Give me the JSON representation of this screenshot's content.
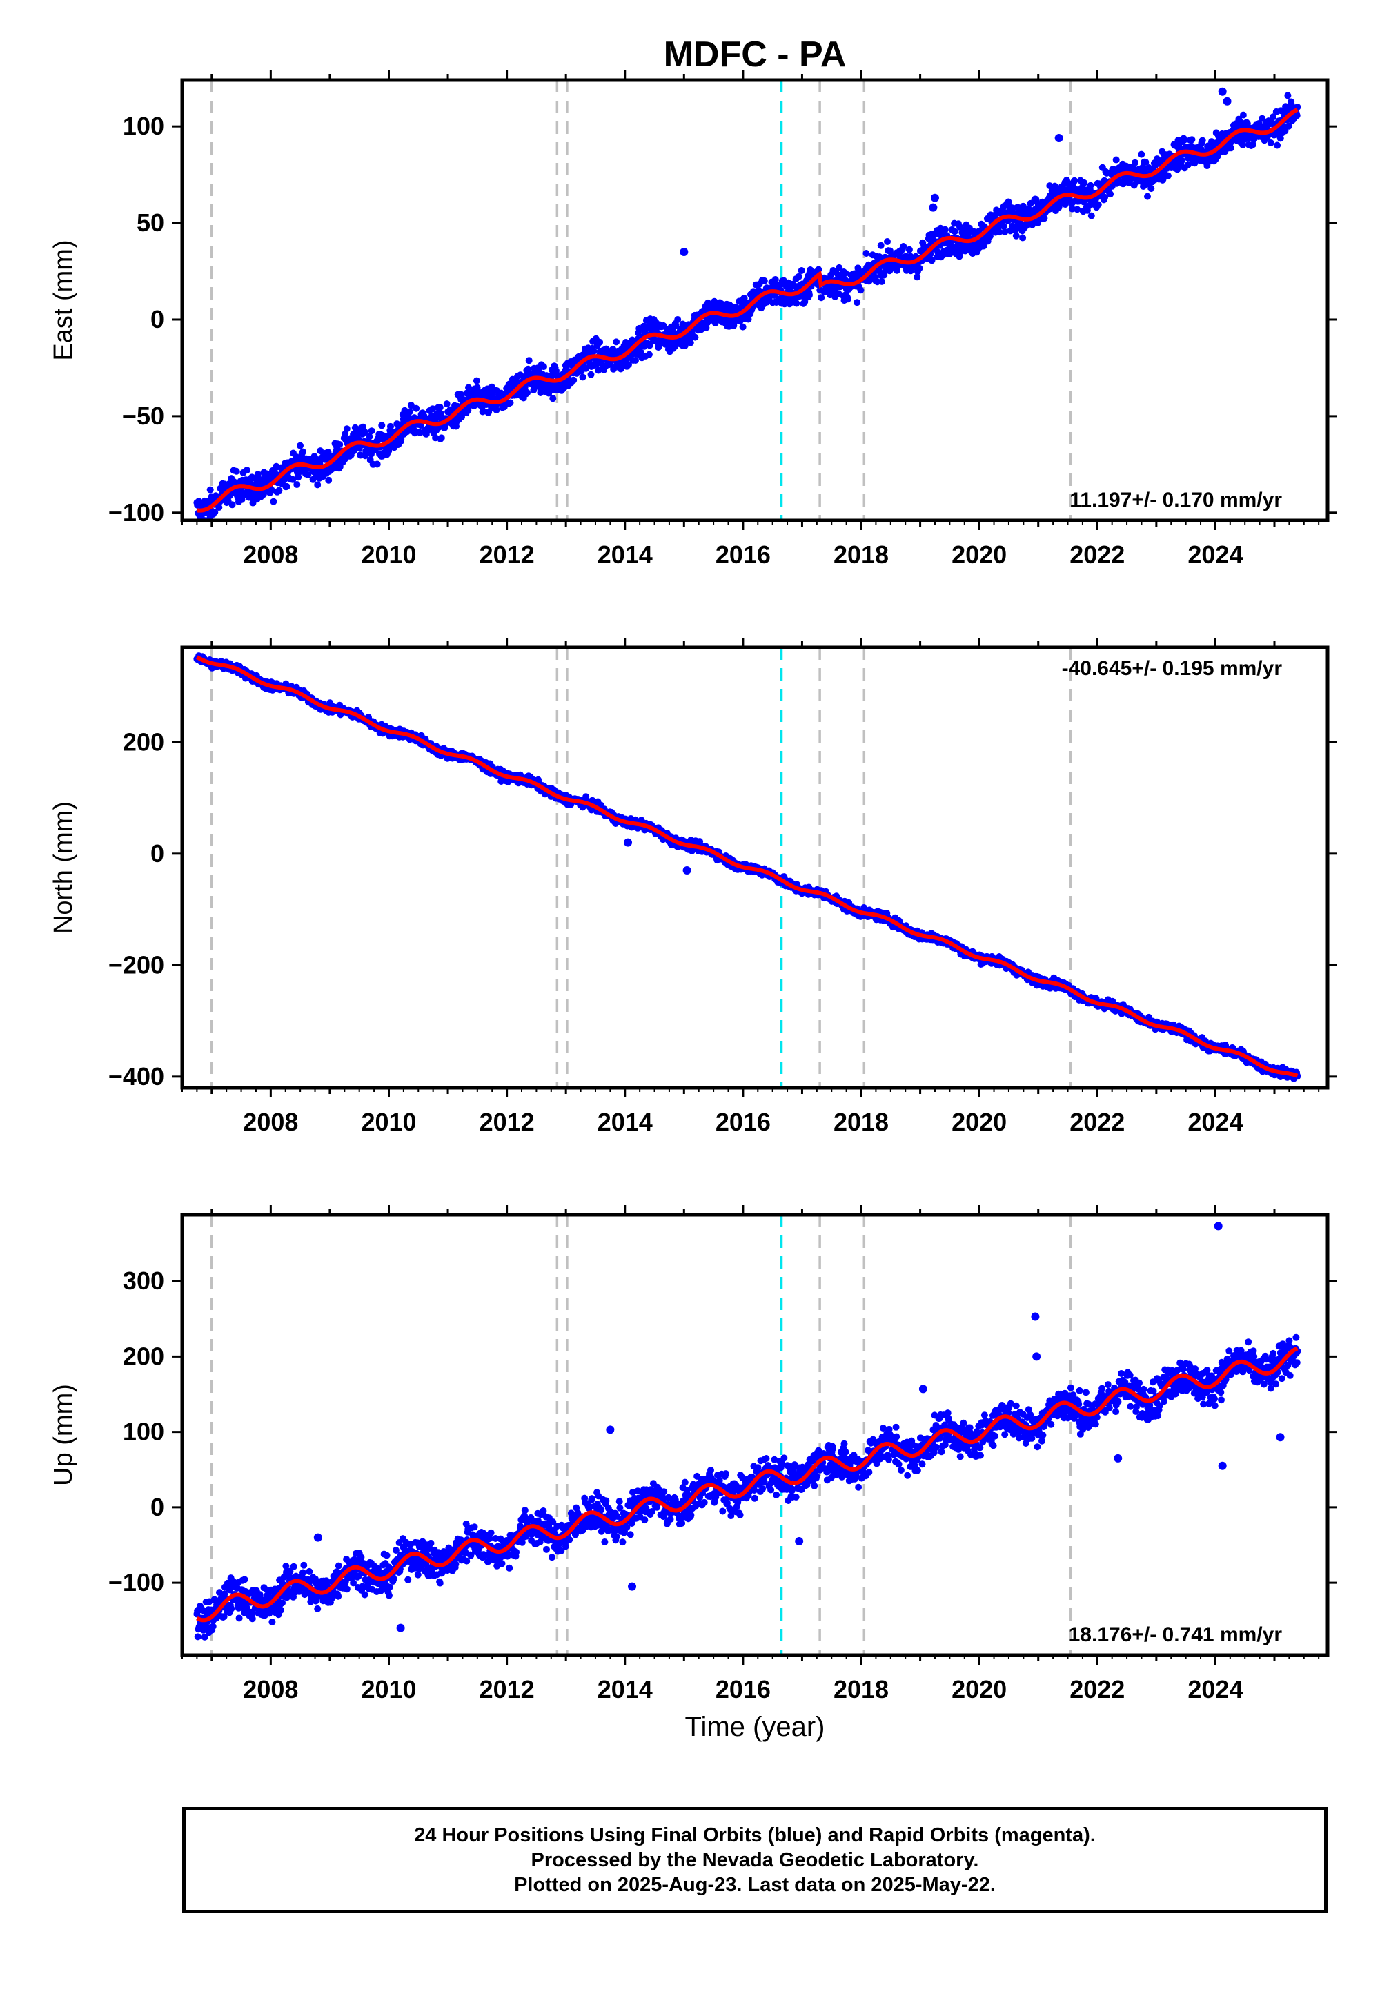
{
  "title": "MDFC - PA",
  "x_axis_label": "Time (year)",
  "footer": {
    "line1": "24 Hour Positions Using Final Orbits (blue) and Rapid Orbits (magenta).",
    "line2": "Processed by the Nevada Geodetic Laboratory.",
    "line3": "Plotted on 2025-Aug-23. Last data on 2025-May-22."
  },
  "colors": {
    "data_points": "#0000ff",
    "model_fit": "#ff0000",
    "event_gray": "#c0c0c0",
    "event_cyan": "#00e5ee"
  },
  "chart_data": [
    {
      "type": "scatter",
      "component": "east",
      "ylabel": "East (mm)",
      "xlim": [
        2006.5,
        2025.9
      ],
      "ylim": [
        -104,
        124
      ],
      "x_ticks": [
        2008,
        2010,
        2012,
        2014,
        2016,
        2018,
        2020,
        2022,
        2024
      ],
      "y_ticks": [
        -100,
        -50,
        0,
        50,
        100
      ],
      "y_tick_labels": [
        "−100",
        "−50",
        "0",
        "50",
        "100"
      ],
      "rate_text": "11.197+/- 0.170 mm/yr",
      "rate_position": "bottom-right",
      "start": 2006.75,
      "end": 2025.39,
      "start_value": -97,
      "end_value": 99,
      "rate": 11.197,
      "seasonal_amplitude": 3,
      "scatter": 4,
      "steps": [
        [
          2017.3,
          -6
        ]
      ],
      "outliers": [
        [
          2024.12,
          118
        ],
        [
          2024.2,
          113
        ],
        [
          2021.35,
          94
        ],
        [
          2015.0,
          35
        ],
        [
          2019.25,
          63
        ],
        [
          2019.22,
          58
        ],
        [
          2020.95,
          62
        ]
      ],
      "event_lines_gray": [
        2007.0,
        2012.85,
        2013.02,
        2017.3,
        2018.05,
        2021.55
      ],
      "event_lines_cyan": [
        2016.65
      ]
    },
    {
      "type": "scatter",
      "component": "north",
      "ylabel": "North (mm)",
      "xlim": [
        2006.5,
        2025.9
      ],
      "ylim": [
        -420,
        370
      ],
      "x_ticks": [
        2008,
        2010,
        2012,
        2014,
        2016,
        2018,
        2020,
        2022,
        2024
      ],
      "y_ticks": [
        -400,
        -200,
        0,
        200
      ],
      "y_tick_labels": [
        "−400",
        "−200",
        "0",
        "200"
      ],
      "rate_text": "-40.645+/- 0.195 mm/yr",
      "rate_position": "top-right",
      "start": 2006.75,
      "end": 2025.39,
      "start_value": 355,
      "end_value": -393,
      "rate": -40.645,
      "seasonal_amplitude": 4,
      "scatter": 4,
      "steps": [],
      "outliers": [
        [
          2014.05,
          20
        ],
        [
          2015.05,
          -30
        ],
        [
          2021.2,
          -240
        ]
      ],
      "event_lines_gray": [
        2007.0,
        2012.85,
        2013.02,
        2017.3,
        2018.05,
        2021.55
      ],
      "event_lines_cyan": [
        2016.65
      ]
    },
    {
      "type": "scatter",
      "component": "up",
      "ylabel": "Up (mm)",
      "xlim": [
        2006.5,
        2025.9
      ],
      "ylim": [
        -196,
        388
      ],
      "x_ticks": [
        2008,
        2010,
        2012,
        2014,
        2016,
        2018,
        2020,
        2022,
        2024
      ],
      "y_ticks": [
        -100,
        0,
        100,
        200,
        300
      ],
      "y_tick_labels": [
        "−100",
        "0",
        "100",
        "200",
        "300"
      ],
      "rate_text": "18.176+/- 0.741 mm/yr",
      "rate_position": "bottom-right",
      "start": 2006.75,
      "end": 2025.39,
      "start_value": -140,
      "end_value": 177,
      "rate": 18.176,
      "seasonal_amplitude": 12,
      "scatter": 12,
      "steps": [],
      "outliers": [
        [
          2024.05,
          373
        ],
        [
          2020.95,
          253
        ],
        [
          2020.97,
          200
        ],
        [
          2013.75,
          103
        ],
        [
          2014.12,
          -105
        ],
        [
          2024.12,
          55
        ],
        [
          2025.1,
          93
        ],
        [
          2019.05,
          157
        ],
        [
          2016.95,
          -45
        ],
        [
          2008.8,
          -40
        ],
        [
          2010.2,
          -160
        ],
        [
          2022.35,
          65
        ]
      ],
      "event_lines_gray": [
        2007.0,
        2012.85,
        2013.02,
        2017.3,
        2018.05,
        2021.55
      ],
      "event_lines_cyan": [
        2016.65
      ]
    }
  ]
}
